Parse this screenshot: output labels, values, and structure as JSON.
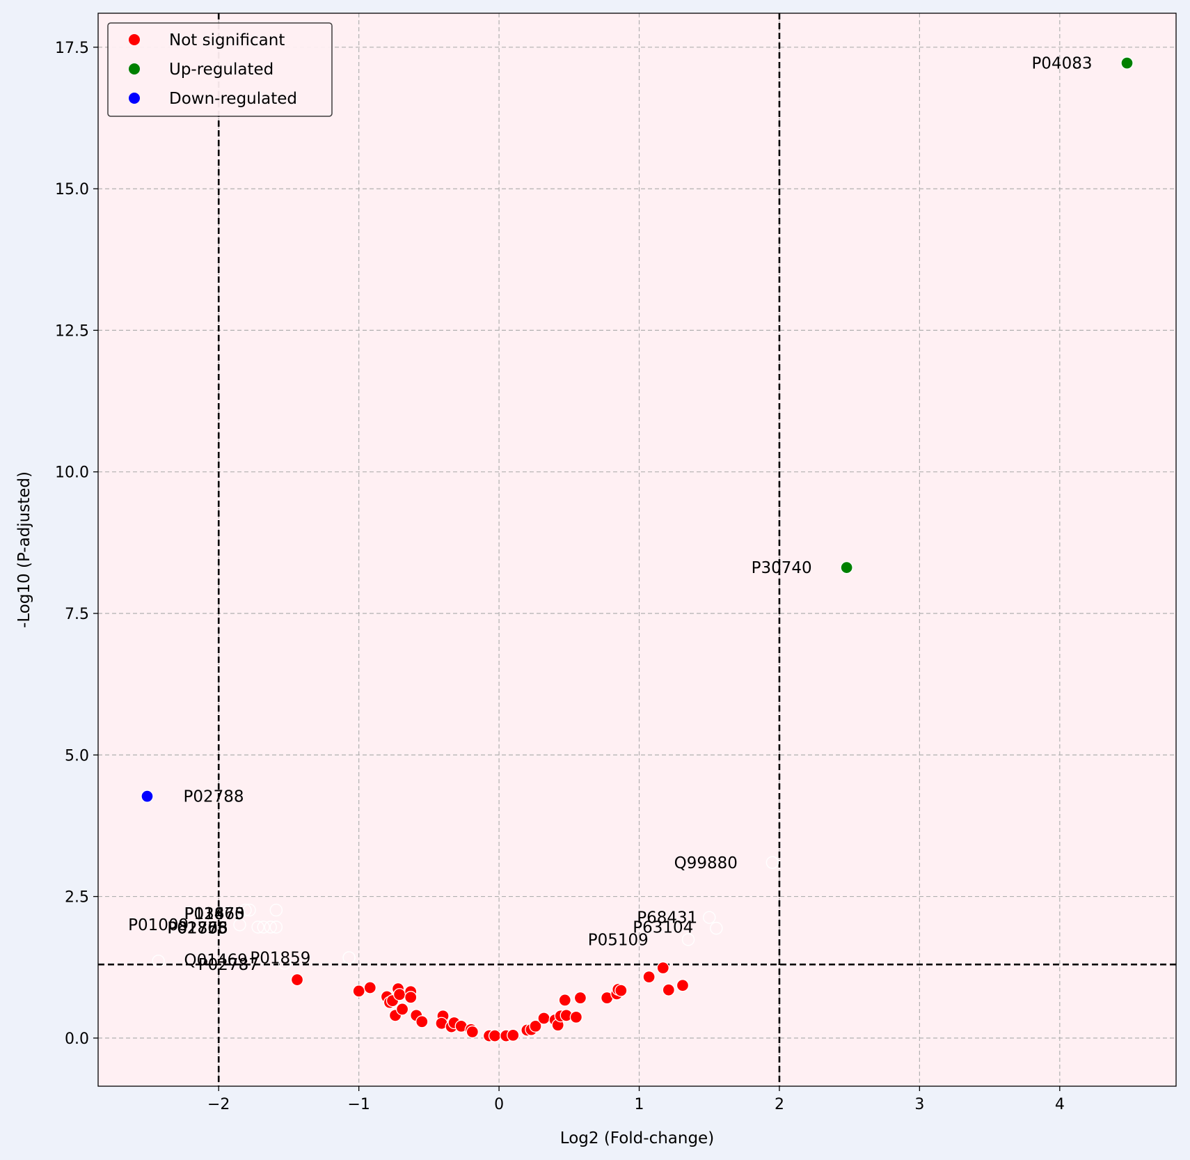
{
  "chart_data": {
    "type": "scatter",
    "title": "",
    "xlabel": "Log2 (Fold-change)",
    "ylabel": "-Log10 (P-adjusted)",
    "xlim": [
      -2.86,
      4.83
    ],
    "ylim": [
      -0.85,
      18.1
    ],
    "xticks": [
      -2,
      -1,
      0,
      1,
      2,
      3,
      4
    ],
    "xtick_labels": [
      "−2",
      "−1",
      "0",
      "1",
      "2",
      "3",
      "4"
    ],
    "yticks": [
      0,
      2.5,
      5,
      7.5,
      10,
      12.5,
      15,
      17.5
    ],
    "ytick_labels": [
      "0.0",
      "2.5",
      "5.0",
      "7.5",
      "10.0",
      "12.5",
      "15.0",
      "17.5"
    ],
    "grid": true,
    "legend_position": "top-left",
    "thresholds": {
      "log2fc": [
        -2,
        2
      ],
      "neg_log10_p": 1.3
    },
    "colors": {
      "not_significant": "#ff0000",
      "up": "#008000",
      "down": "#0000ff",
      "plot_background": "#fff0f3",
      "figure_background": "#eef2fa"
    },
    "series": [
      {
        "name": "Not significant",
        "color": "#ff0000",
        "points": [
          [
            -1.44,
            1.03
          ],
          [
            -1.0,
            0.83
          ],
          [
            -0.92,
            0.89
          ],
          [
            -0.8,
            0.73
          ],
          [
            -0.78,
            0.63
          ],
          [
            -0.76,
            0.66
          ],
          [
            -0.74,
            0.4
          ],
          [
            -0.72,
            0.87
          ],
          [
            -0.71,
            0.77
          ],
          [
            -0.69,
            0.51
          ],
          [
            -0.63,
            0.82
          ],
          [
            -0.63,
            0.72
          ],
          [
            -0.59,
            0.4
          ],
          [
            -0.55,
            0.29
          ],
          [
            -0.4,
            0.39
          ],
          [
            -0.41,
            0.26
          ],
          [
            -0.34,
            0.2
          ],
          [
            -0.32,
            0.27
          ],
          [
            -0.27,
            0.21
          ],
          [
            -0.2,
            0.15
          ],
          [
            -0.19,
            0.11
          ],
          [
            -0.07,
            0.04
          ],
          [
            -0.03,
            0.04
          ],
          [
            0.05,
            0.04
          ],
          [
            0.1,
            0.05
          ],
          [
            0.2,
            0.14
          ],
          [
            0.23,
            0.15
          ],
          [
            0.26,
            0.21
          ],
          [
            0.32,
            0.35
          ],
          [
            0.4,
            0.32
          ],
          [
            0.42,
            0.23
          ],
          [
            0.44,
            0.39
          ],
          [
            0.47,
            0.67
          ],
          [
            0.48,
            0.4
          ],
          [
            0.55,
            0.37
          ],
          [
            0.58,
            0.71
          ],
          [
            0.77,
            0.71
          ],
          [
            0.84,
            0.78
          ],
          [
            0.85,
            0.86
          ],
          [
            0.87,
            0.84
          ],
          [
            1.07,
            1.08
          ],
          [
            1.17,
            1.24
          ],
          [
            1.21,
            0.85
          ],
          [
            1.31,
            0.93
          ]
        ]
      },
      {
        "name": "Up-regulated",
        "color": "#008000",
        "points": [
          [
            4.48,
            17.22
          ],
          [
            2.48,
            8.31
          ]
        ]
      },
      {
        "name": "Down-regulated",
        "color": "#0000ff",
        "points": [
          [
            -2.51,
            4.27
          ]
        ]
      }
    ],
    "faint_points": [
      [
        -1.81,
        2.26
      ],
      [
        -1.78,
        2.26
      ],
      [
        -1.59,
        2.26
      ],
      [
        -1.72,
        1.96
      ],
      [
        -1.68,
        1.96
      ],
      [
        -1.63,
        1.96
      ],
      [
        -1.59,
        1.96
      ],
      [
        -1.85,
        2.0
      ],
      [
        -1.07,
        1.42
      ],
      [
        -1.53,
        1.32
      ],
      [
        1.95,
        3.1
      ],
      [
        1.5,
        2.13
      ],
      [
        1.55,
        1.94
      ],
      [
        1.35,
        1.74
      ],
      [
        -2.43,
        1.36
      ]
    ],
    "annotations": [
      {
        "text": "P04083",
        "x": 4.48,
        "y": 17.22
      },
      {
        "text": "P30740",
        "x": 2.48,
        "y": 8.31
      },
      {
        "text": "P02788",
        "x": -2.51,
        "y": 4.27
      },
      {
        "text": "Q99880",
        "x": 1.95,
        "y": 3.1
      },
      {
        "text": "P68431",
        "x": 1.5,
        "y": 2.13
      },
      {
        "text": "P63104",
        "x": 1.55,
        "y": 1.94
      },
      {
        "text": "P05109",
        "x": 1.35,
        "y": 1.74
      },
      {
        "text": "P01860",
        "x": -1.78,
        "y": 2.26
      },
      {
        "text": "P02675",
        "x": -1.81,
        "y": 2.26
      },
      {
        "text": "P13473",
        "x": -1.59,
        "y": 2.26
      },
      {
        "text": "P02753",
        "x": -1.72,
        "y": 1.96
      },
      {
        "text": "P62805",
        "x": -1.68,
        "y": 1.96
      },
      {
        "text": "P02763",
        "x": -1.63,
        "y": 1.96
      },
      {
        "text": "P01876",
        "x": -1.59,
        "y": 1.96
      },
      {
        "text": "P01009",
        "x": -1.85,
        "y": 2.0
      },
      {
        "text": "Q01469",
        "x": -1.53,
        "y": 1.32
      },
      {
        "text": "P01859",
        "x": -1.07,
        "y": 1.42
      },
      {
        "text": "P02787",
        "x": -2.43,
        "y": 1.36
      }
    ]
  }
}
